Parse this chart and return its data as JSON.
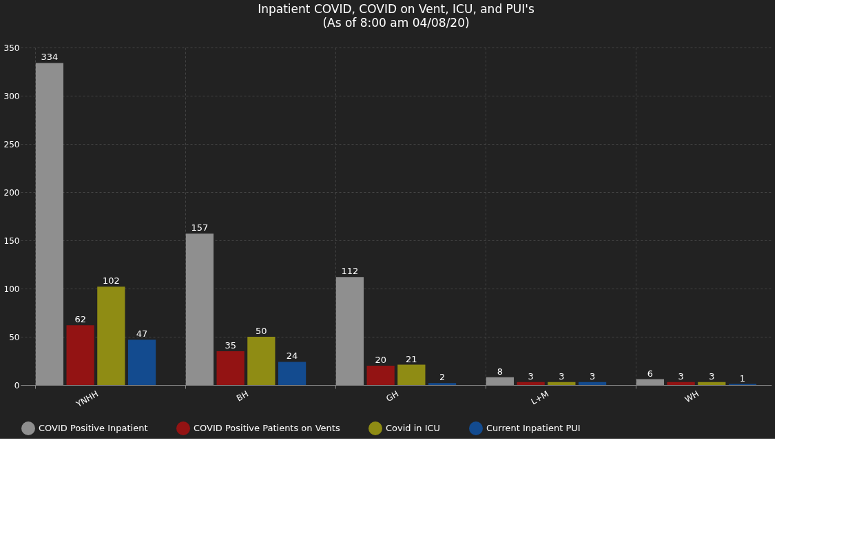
{
  "chart_data": {
    "type": "bar",
    "title": "Inpatient COVID, COVID on Vent, ICU, and PUI's",
    "subtitle": "(As of 8:00 am 04/08/20)",
    "categories": [
      "YNHH",
      "BH",
      "GH",
      "L+M",
      "WH"
    ],
    "series": [
      {
        "name": "COVID Positive Inpatient",
        "color": "#8f8f8f",
        "values": [
          334,
          157,
          112,
          8,
          6
        ]
      },
      {
        "name": "COVID Positive Patients on Vents",
        "color": "#931313",
        "values": [
          62,
          35,
          20,
          3,
          3
        ]
      },
      {
        "name": "Covid in ICU",
        "color": "#8f8c14",
        "values": [
          102,
          50,
          21,
          3,
          3
        ]
      },
      {
        "name": "Current Inpatient PUI",
        "color": "#134b8f",
        "values": [
          47,
          24,
          2,
          3,
          1
        ]
      }
    ],
    "ylim": [
      0,
      350
    ],
    "yticks": [
      0,
      50,
      100,
      150,
      200,
      250,
      300,
      350
    ],
    "grid": true,
    "legend": "bottom",
    "data_labels": true
  }
}
